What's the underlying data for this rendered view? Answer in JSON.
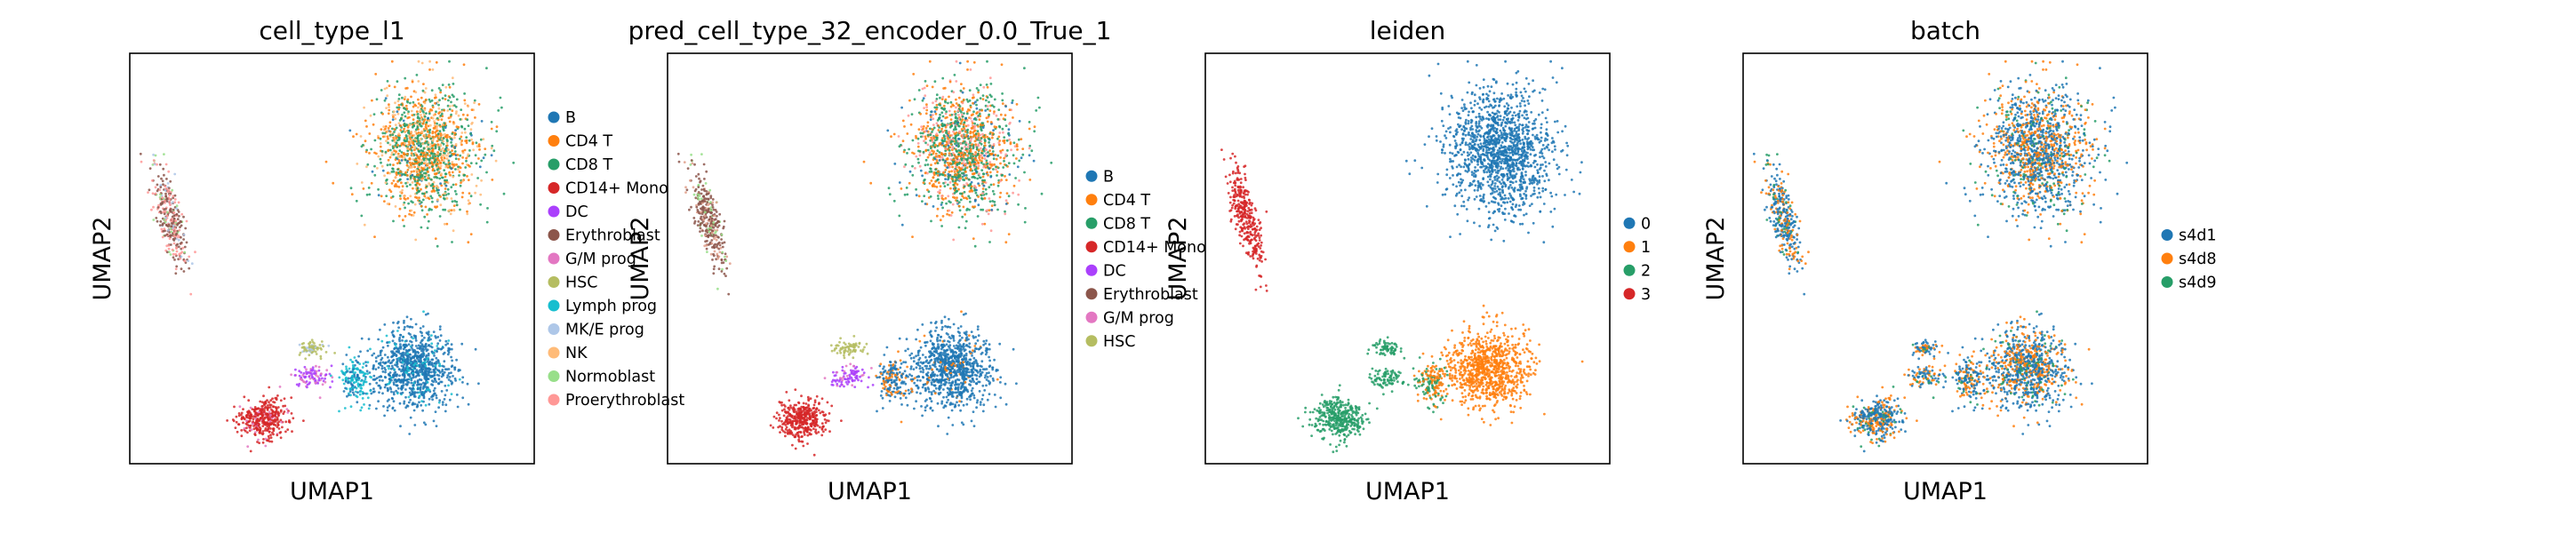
{
  "chart_data": [
    {
      "type": "scatter",
      "title": "cell_type_l1",
      "xlabel": "UMAP1",
      "ylabel": "UMAP2",
      "axis_ticks": "none",
      "legend_placement": "right",
      "legend": [
        {
          "label": "B",
          "color": "#1f77b4"
        },
        {
          "label": "CD4 T",
          "color": "#ff7f0e"
        },
        {
          "label": "CD8 T",
          "color": "#279e68"
        },
        {
          "label": "CD14+ Mono",
          "color": "#d62728"
        },
        {
          "label": "DC",
          "color": "#aa40fc"
        },
        {
          "label": "Erythroblast",
          "color": "#8c564b"
        },
        {
          "label": "G/M prog",
          "color": "#e377c2"
        },
        {
          "label": "HSC",
          "color": "#b5bd61"
        },
        {
          "label": "Lymph prog",
          "color": "#17becf"
        },
        {
          "label": "MK/E prog",
          "color": "#aec7e8"
        },
        {
          "label": "NK",
          "color": "#ffbb78"
        },
        {
          "label": "Normoblast",
          "color": "#98df8a"
        },
        {
          "label": "Proerythroblast",
          "color": "#ff9896"
        }
      ]
    },
    {
      "type": "scatter",
      "title": "pred_cell_type_32_encoder_0.0_True_1",
      "xlabel": "UMAP1",
      "ylabel": "UMAP2",
      "axis_ticks": "none",
      "legend_placement": "right",
      "legend": [
        {
          "label": "B",
          "color": "#1f77b4"
        },
        {
          "label": "CD4 T",
          "color": "#ff7f0e"
        },
        {
          "label": "CD8 T",
          "color": "#279e68"
        },
        {
          "label": "CD14+ Mono",
          "color": "#d62728"
        },
        {
          "label": "DC",
          "color": "#aa40fc"
        },
        {
          "label": "Erythroblast",
          "color": "#8c564b"
        },
        {
          "label": "G/M prog",
          "color": "#e377c2"
        },
        {
          "label": "HSC",
          "color": "#b5bd61"
        }
      ]
    },
    {
      "type": "scatter",
      "title": "leiden",
      "xlabel": "UMAP1",
      "ylabel": "UMAP2",
      "axis_ticks": "none",
      "legend_placement": "right",
      "legend": [
        {
          "label": "0",
          "color": "#1f77b4"
        },
        {
          "label": "1",
          "color": "#ff7f0e"
        },
        {
          "label": "2",
          "color": "#279e68"
        },
        {
          "label": "3",
          "color": "#d62728"
        }
      ]
    },
    {
      "type": "scatter",
      "title": "batch",
      "xlabel": "UMAP1",
      "ylabel": "UMAP2",
      "axis_ticks": "none",
      "legend_placement": "right",
      "legend": [
        {
          "label": "s4d1",
          "color": "#1f77b4"
        },
        {
          "label": "s4d8",
          "color": "#ff7f0e"
        },
        {
          "label": "s4d9",
          "color": "#279e68"
        }
      ]
    }
  ]
}
